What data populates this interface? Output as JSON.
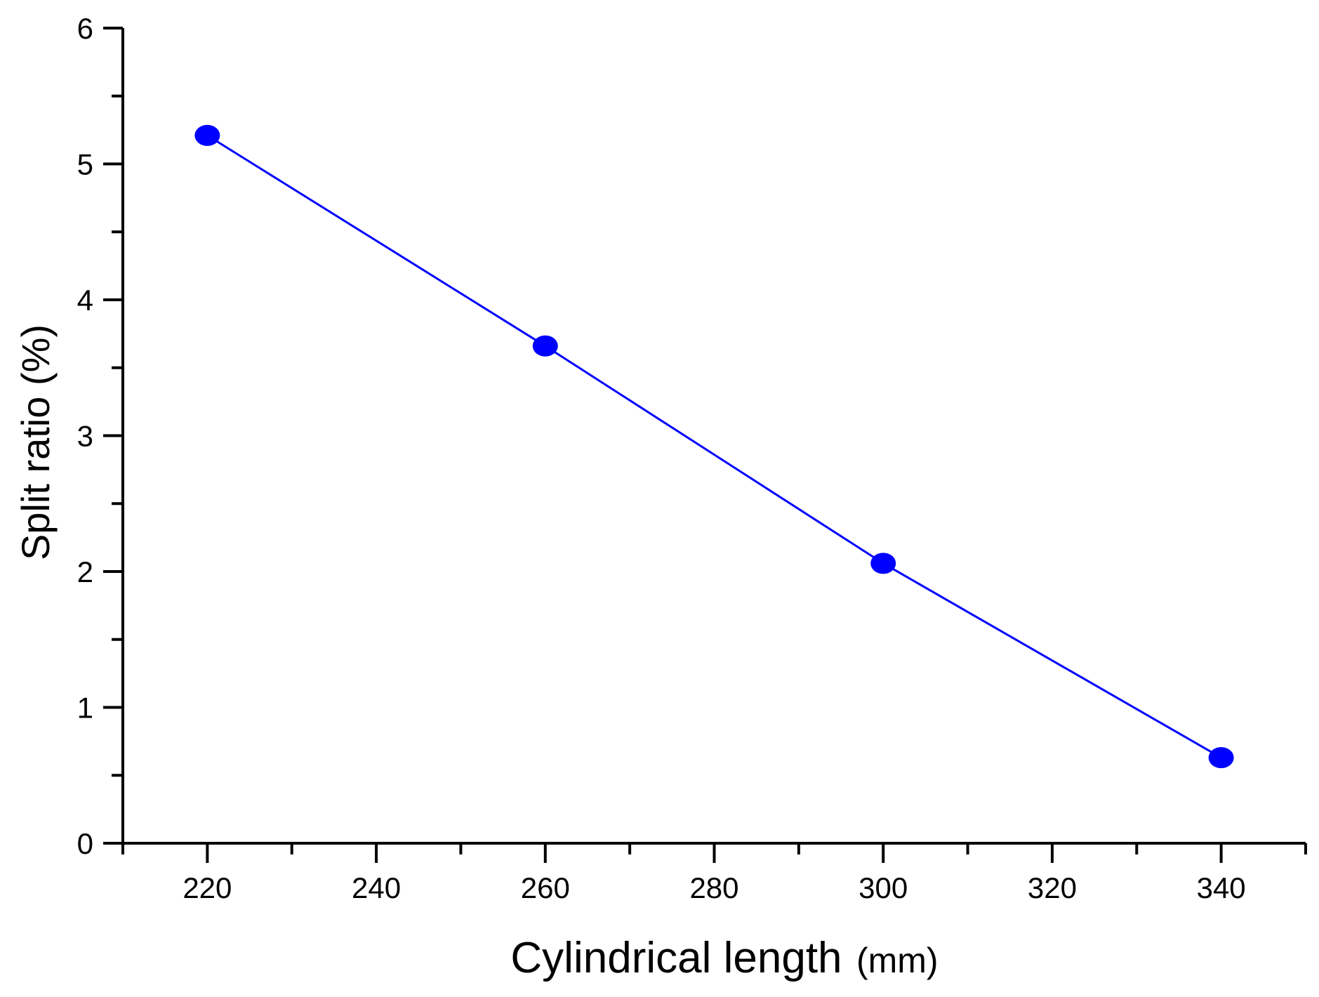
{
  "chart_data": {
    "type": "line",
    "xlabel": "Cylindrical length",
    "xlabel_unit": "(mm)",
    "ylabel": "Split ratio (%)",
    "xlim": [
      210,
      350
    ],
    "ylim": [
      0,
      6
    ],
    "x_ticks": [
      "220",
      "240",
      "260",
      "280",
      "300",
      "320",
      "340"
    ],
    "y_ticks": [
      "0",
      "1",
      "2",
      "3",
      "4",
      "5",
      "6"
    ],
    "grid": false,
    "legend": "none",
    "series": [
      {
        "color": "#0000ff",
        "marker": "circle",
        "x": [
          220,
          260,
          300,
          340
        ],
        "y": [
          5.21,
          3.66,
          2.06,
          0.63
        ]
      }
    ]
  }
}
